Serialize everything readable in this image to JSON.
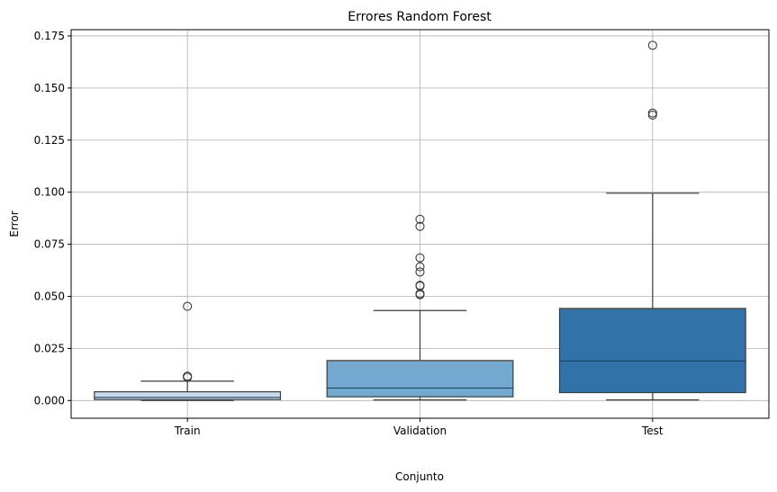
{
  "chart_data": {
    "type": "box",
    "title": "Errores Random Forest",
    "xlabel": "Conjunto",
    "ylabel": "Error",
    "ylim": [
      -0.0085,
      0.178
    ],
    "yticks": [
      0.0,
      0.025,
      0.05,
      0.075,
      0.1,
      0.125,
      0.15,
      0.175
    ],
    "ytick_labels": [
      "0.000",
      "0.025",
      "0.050",
      "0.075",
      "0.100",
      "0.125",
      "0.150",
      "0.175"
    ],
    "grid": true,
    "categories": [
      "Train",
      "Validation",
      "Test"
    ],
    "boxes": [
      {
        "category": "Train",
        "color": "#c6dbef",
        "whisker_low": 0.0,
        "q1": 0.0005,
        "median": 0.0015,
        "q3": 0.0042,
        "whisker_high": 0.0093,
        "outliers": [
          0.0112,
          0.0117,
          0.0452
        ]
      },
      {
        "category": "Validation",
        "color": "#74a9cf",
        "whisker_low": 0.0003,
        "q1": 0.0018,
        "median": 0.006,
        "q3": 0.0192,
        "whisker_high": 0.0432,
        "outliers": [
          0.0508,
          0.0513,
          0.055,
          0.0553,
          0.0617,
          0.0642,
          0.0685,
          0.0836,
          0.087
        ]
      },
      {
        "category": "Test",
        "color": "#3172a8",
        "whisker_low": 0.0003,
        "q1": 0.0038,
        "median": 0.019,
        "q3": 0.0442,
        "whisker_high": 0.0995,
        "outliers": [
          0.137,
          0.138,
          0.1705
        ]
      }
    ],
    "colors": {
      "box_edge": "#3d3d3d",
      "grid": "#b0b0b0",
      "axis": "#000000"
    }
  }
}
